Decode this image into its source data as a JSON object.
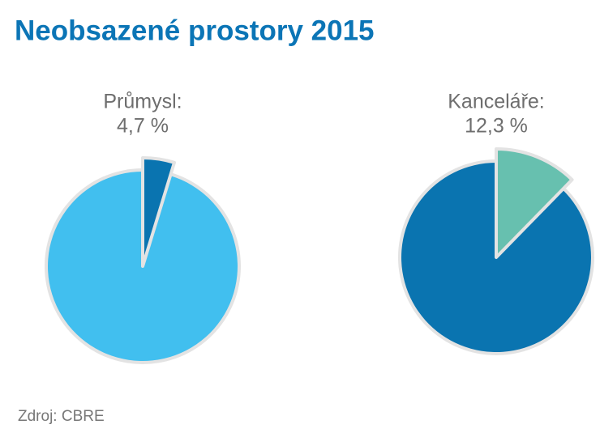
{
  "title": "Neobsazené prostory 2015",
  "source": "Zdroj: CBRE",
  "chart_data": [
    {
      "type": "pie",
      "title": "Průmysl:",
      "values": [
        4.7,
        95.3
      ],
      "value_labels": [
        "4,7 %",
        null
      ],
      "colors": [
        "#0a74b0",
        "#41bfef"
      ],
      "explode": [
        true,
        false
      ]
    },
    {
      "type": "pie",
      "title": "Kanceláře:",
      "values": [
        12.3,
        87.7
      ],
      "value_labels": [
        "12,3 %",
        null
      ],
      "colors": [
        "#67c0af",
        "#0a74b0"
      ],
      "explode": [
        true,
        false
      ]
    }
  ]
}
